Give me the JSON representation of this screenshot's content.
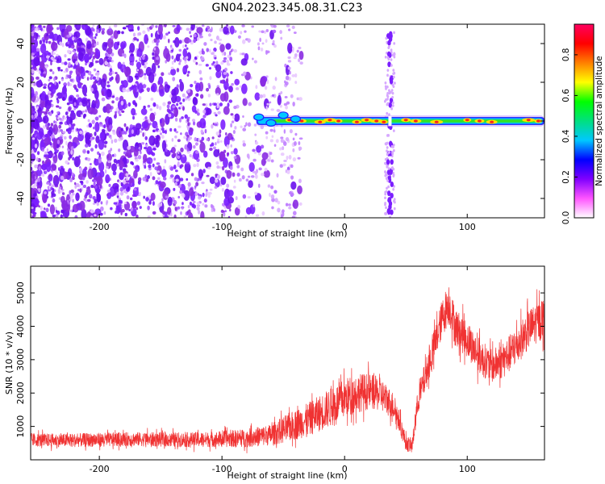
{
  "title": "GN04.2023.345.08.31.C23",
  "chart_data": [
    {
      "type": "heatmap",
      "xlabel": "Height of straight line (km)",
      "ylabel": "Frequency (Hz)",
      "xlim": [
        -256,
        163
      ],
      "ylim": [
        -50,
        50
      ],
      "xticks": [
        -200,
        -100,
        0,
        100
      ],
      "yticks": [
        -40,
        -20,
        0,
        20,
        40
      ],
      "grid": false,
      "colorbar": {
        "label": "Normalized spectral amplitude",
        "range": [
          0.0,
          0.95
        ],
        "ticks": [
          "0.0",
          "0.2",
          "0.4",
          "0.6",
          "0.8"
        ],
        "colors": [
          "#ffffff",
          "#ff55ff",
          "#8000ff",
          "#0000ff",
          "#00c8ff",
          "#00e080",
          "#00ff00",
          "#ffff00",
          "#ff8000",
          "#ff0000",
          "#ff0060"
        ]
      },
      "features": [
        {
          "kind": "scatter-noise",
          "x_range": [
            -256,
            -35
          ],
          "note": "broadband purple speckle"
        },
        {
          "kind": "vertical-band",
          "x": 37,
          "width": 8
        },
        {
          "kind": "signal-line",
          "x_range": [
            -72,
            163
          ],
          "frequency": 0
        }
      ]
    },
    {
      "type": "line",
      "xlabel": "Height of straight line (km)",
      "ylabel": "SNR (10 * v/v)",
      "xlim": [
        -256,
        163
      ],
      "ylim": [
        0,
        5800
      ],
      "xticks": [
        -200,
        -100,
        0,
        100
      ],
      "yticks": [
        1000,
        2000,
        3000,
        4000,
        5000
      ],
      "grid": false,
      "series": [
        {
          "color": "#f03232",
          "x": [
            -256,
            -230,
            -200,
            -170,
            -140,
            -110,
            -80,
            -60,
            -50,
            -40,
            -30,
            -20,
            -10,
            0,
            10,
            20,
            30,
            40,
            45,
            50,
            55,
            60,
            70,
            80,
            85,
            90,
            100,
            110,
            120,
            130,
            140,
            150,
            163
          ],
          "y": [
            600,
            580,
            600,
            620,
            600,
            610,
            650,
            750,
            900,
            1050,
            1200,
            1400,
            1600,
            1850,
            2000,
            2050,
            1950,
            1600,
            1100,
            500,
            400,
            1800,
            3000,
            4300,
            4700,
            4000,
            3600,
            3100,
            2800,
            3000,
            3400,
            3900,
            4300
          ],
          "noise": [
            220,
            220,
            230,
            230,
            240,
            250,
            300,
            350,
            450,
            500,
            550,
            600,
            650,
            650,
            650,
            600,
            550,
            450,
            350,
            250,
            250,
            450,
            550,
            650,
            700,
            650,
            600,
            600,
            550,
            600,
            650,
            650,
            700
          ]
        }
      ]
    }
  ]
}
